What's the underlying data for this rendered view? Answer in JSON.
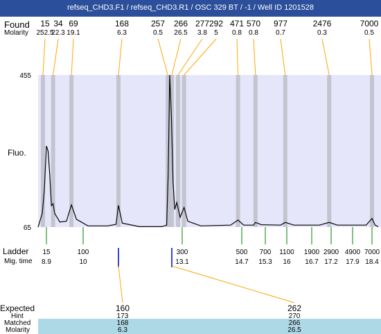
{
  "title": "refseq_CHD3.F1 / refseq_CHD3.R1 / OSC 329 BT / -1 / Well ID 1201528",
  "colors": {
    "title_bg": "#2b4f9a",
    "plot_bg": "#e6e6fa",
    "band": "#bdbdc9",
    "trace": "#000000",
    "guide": "#ffa500",
    "ladder": "#008000",
    "marker": "#0000cd",
    "matched_bg": "#add8e6"
  },
  "labels": {
    "found": "Found",
    "molarity": "Molarity",
    "fluo": "Fluo.",
    "ladder": "Ladder",
    "mig_time": "Mig. time",
    "expected": "Expected",
    "hint": "Hint",
    "matched": "Matched",
    "molarity_row": "Molarity"
  },
  "chart_data": {
    "type": "line",
    "x_axis": "migration time",
    "ylim": [
      65,
      455
    ],
    "ytick_labels": [
      "455",
      "65"
    ],
    "found_peaks": [
      {
        "size": "15",
        "molarity": "252.5",
        "time": 8.9
      },
      {
        "size": "34",
        "molarity": "22.3",
        "time": 9.1
      },
      {
        "size": "69",
        "molarity": "19.1",
        "time": 9.65
      },
      {
        "size": "168",
        "molarity": "6.3",
        "time": 11.45
      },
      {
        "size": "257",
        "molarity": "0.5",
        "time": 12.75
      },
      {
        "size": "266",
        "molarity": "26.5",
        "time": 12.85
      },
      {
        "size": "277",
        "molarity": "3.8",
        "time": 13.0
      },
      {
        "size": "292",
        "molarity": "5",
        "time": 13.15
      },
      {
        "size": "471",
        "molarity": "0.8",
        "time": 14.6
      },
      {
        "size": "570",
        "molarity": "0.8",
        "time": 15.05
      },
      {
        "size": "977",
        "molarity": "0.7",
        "time": 15.95
      },
      {
        "size": "2476",
        "molarity": "0.3",
        "time": 17.15
      },
      {
        "size": "7000",
        "molarity": "0.5",
        "time": 18.4
      }
    ],
    "ladder": [
      {
        "size": "15",
        "time": "8.9"
      },
      {
        "size": "100",
        "time": "10"
      },
      {
        "size": "300",
        "time": "13.1"
      },
      {
        "size": "500",
        "time": "14.7"
      },
      {
        "size": "700",
        "time": "15.3"
      },
      {
        "size": "1100",
        "time": "16"
      },
      {
        "size": "1900",
        "time": "16.7"
      },
      {
        "size": "2900",
        "time": "17.2"
      },
      {
        "size": "4900",
        "time": "17.9"
      },
      {
        "size": "7000",
        "time": "18.4"
      }
    ],
    "trace": [
      [
        8.7,
        65
      ],
      [
        8.8,
        100
      ],
      [
        8.85,
        160
      ],
      [
        8.9,
        273
      ],
      [
        8.95,
        260
      ],
      [
        9.0,
        200
      ],
      [
        9.05,
        120
      ],
      [
        9.1,
        125
      ],
      [
        9.15,
        100
      ],
      [
        9.3,
        78
      ],
      [
        9.5,
        80
      ],
      [
        9.65,
        122
      ],
      [
        9.8,
        85
      ],
      [
        10.2,
        68
      ],
      [
        11.0,
        68
      ],
      [
        11.35,
        72
      ],
      [
        11.45,
        121
      ],
      [
        11.55,
        75
      ],
      [
        12.0,
        66
      ],
      [
        12.6,
        66
      ],
      [
        12.72,
        70
      ],
      [
        12.76,
        200
      ],
      [
        12.8,
        455
      ],
      [
        12.84,
        350
      ],
      [
        12.88,
        180
      ],
      [
        12.92,
        110
      ],
      [
        12.97,
        128
      ],
      [
        13.05,
        90
      ],
      [
        13.15,
        115
      ],
      [
        13.25,
        80
      ],
      [
        13.6,
        68
      ],
      [
        14.4,
        70
      ],
      [
        14.6,
        83
      ],
      [
        14.75,
        70
      ],
      [
        15.0,
        70
      ],
      [
        15.05,
        77
      ],
      [
        15.2,
        71
      ],
      [
        15.8,
        70
      ],
      [
        15.95,
        77
      ],
      [
        16.2,
        70
      ],
      [
        16.9,
        70
      ],
      [
        17.15,
        77
      ],
      [
        17.4,
        70
      ],
      [
        18.25,
        70
      ],
      [
        18.4,
        87
      ],
      [
        18.55,
        70
      ],
      [
        18.7,
        66
      ]
    ],
    "expected": [
      {
        "expected": "160",
        "hint": "173",
        "matched": "168",
        "molarity": "6.3",
        "time": 11.45
      },
      {
        "expected": "262",
        "hint": "270",
        "matched": "266",
        "molarity": "26.5",
        "time": 12.85
      }
    ],
    "markers": [
      {
        "time": 11.45
      },
      {
        "time": 12.85
      }
    ]
  }
}
